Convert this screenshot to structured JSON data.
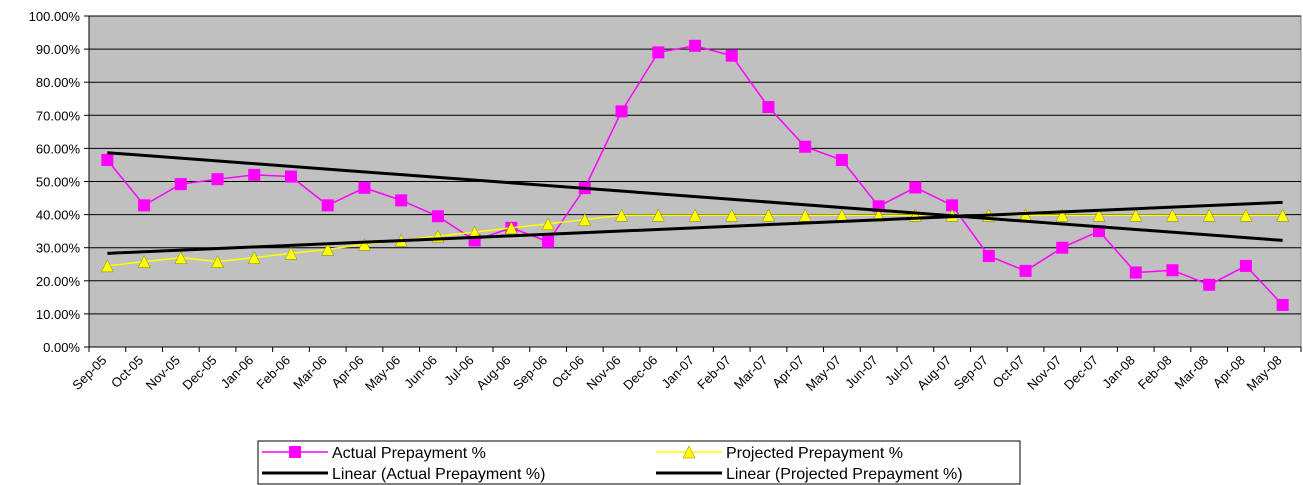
{
  "chart_data": {
    "type": "line",
    "title": "",
    "xlabel": "",
    "ylabel": "",
    "ylim": [
      0,
      1
    ],
    "y_ticks": [
      "0.00%",
      "10.00%",
      "20.00%",
      "30.00%",
      "40.00%",
      "50.00%",
      "60.00%",
      "70.00%",
      "80.00%",
      "90.00%",
      "100.00%"
    ],
    "categories": [
      "Sep-05",
      "Oct-05",
      "Nov-05",
      "Dec-05",
      "Jan-06",
      "Feb-06",
      "Mar-06",
      "Apr-06",
      "May-06",
      "Jun-06",
      "Jul-06",
      "Aug-06",
      "Sep-06",
      "Oct-06",
      "Nov-06",
      "Dec-06",
      "Jan-07",
      "Feb-07",
      "Mar-07",
      "Apr-07",
      "May-07",
      "Jun-07",
      "Jul-07",
      "Aug-07",
      "Sep-07",
      "Oct-07",
      "Nov-07",
      "Dec-07",
      "Jan-08",
      "Feb-08",
      "Mar-08",
      "Apr-08",
      "May-08"
    ],
    "grid": true,
    "plot_background": "#c0c0c0",
    "legend_position": "bottom",
    "series": [
      {
        "name": "Actual Prepayment %",
        "color": "#ff00ff",
        "marker": "square",
        "values": [
          0.565,
          0.428,
          0.492,
          0.507,
          0.52,
          0.515,
          0.428,
          0.481,
          0.443,
          0.395,
          0.322,
          0.36,
          0.318,
          0.48,
          0.712,
          0.89,
          0.91,
          0.88,
          0.725,
          0.605,
          0.565,
          0.425,
          0.482,
          0.428,
          0.275,
          0.23,
          0.3,
          0.35,
          0.225,
          0.232,
          0.188,
          0.245,
          0.127
        ]
      },
      {
        "name": "Projected Prepayment %",
        "color": "#ffff00",
        "marker": "triangle",
        "values": [
          0.245,
          0.258,
          0.27,
          0.258,
          0.27,
          0.283,
          0.295,
          0.31,
          0.322,
          0.335,
          0.347,
          0.36,
          0.372,
          0.385,
          0.398,
          0.398,
          0.398,
          0.398,
          0.398,
          0.398,
          0.398,
          0.398,
          0.398,
          0.398,
          0.398,
          0.398,
          0.398,
          0.398,
          0.398,
          0.398,
          0.398,
          0.398,
          0.398
        ]
      },
      {
        "name": "Linear (Actual Prepayment %)",
        "color": "#000000",
        "marker": "none",
        "trendline": {
          "start": 0.587,
          "end": 0.322
        }
      },
      {
        "name": "Linear (Projected Prepayment %)",
        "color": "#000000",
        "marker": "none",
        "trendline": {
          "start": 0.283,
          "end": 0.437
        }
      }
    ]
  }
}
